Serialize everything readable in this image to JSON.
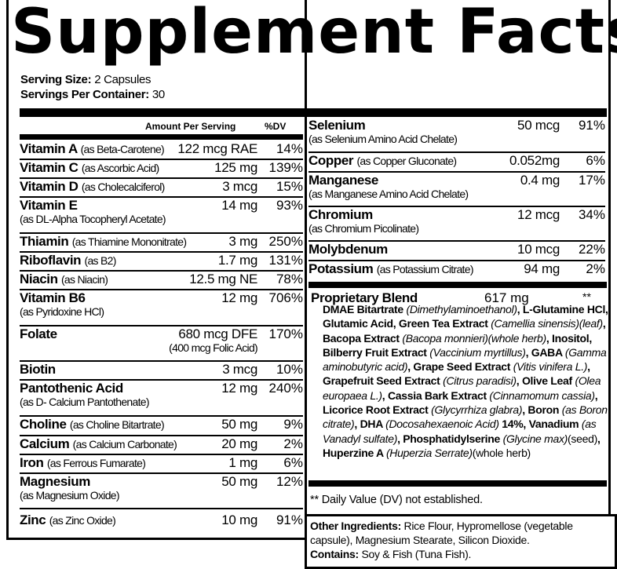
{
  "title": "Supplement Facts",
  "serving_size_label": "Serving Size:",
  "serving_size": "2 Capsules",
  "servings_label": "Servings Per Container:",
  "servings": "30",
  "headers": {
    "amount": "Amount Per Serving",
    "dv": "%DV"
  },
  "left_rows": [
    {
      "name": "Vitamin A",
      "source": "(as Beta-Carotene)",
      "amount": "122 mcg RAE",
      "dv": "14%"
    },
    {
      "name": "Vitamin C",
      "source": "(as Ascorbic Acid)",
      "amount": "125 mg",
      "dv": "139%"
    },
    {
      "name": "Vitamin D",
      "source": "(as Cholecalciferol)",
      "amount": "3 mcg",
      "dv": "15%"
    },
    {
      "name": "Vitamin E",
      "sub": "(as DL-Alpha Tocopheryl Acetate)",
      "amount": "14 mg",
      "dv": "93%"
    },
    {
      "name": "Thiamin",
      "source": "(as Thiamine Mononitrate)",
      "amount": "3 mg",
      "dv": "250%"
    },
    {
      "name": "Riboflavin",
      "source": "(as B2)",
      "amount": "1.7 mg",
      "dv": "131%"
    },
    {
      "name": "Niacin",
      "source": "(as Niacin)",
      "amount": "12.5 mg NE",
      "dv": "78%"
    },
    {
      "name": "Vitamin B6",
      "sub": "(as Pyridoxine HCl)",
      "amount": "12 mg",
      "dv": "706%"
    },
    {
      "name": "Folate",
      "amount": "680 mcg DFE",
      "amount_sub": "(400 mcg Folic Acid)",
      "dv": "170%"
    },
    {
      "name": "Biotin",
      "amount": "3 mcg",
      "dv": "10%"
    },
    {
      "name": "Pantothenic Acid",
      "sub": "(as D- Calcium Pantothenate)",
      "amount": "12 mg",
      "dv": "240%"
    },
    {
      "name": "Choline",
      "source": "(as Choline Bitartrate)",
      "amount": "50 mg",
      "dv": "9%"
    },
    {
      "name": "Calcium",
      "source": "(as Calcium Carbonate)",
      "amount": "20 mg",
      "dv": "2%"
    },
    {
      "name": "Iron",
      "source": "(as Ferrous Fumarate)",
      "amount": "1 mg",
      "dv": "6%"
    },
    {
      "name": "Magnesium",
      "sub": "(as Magnesium Oxide)",
      "amount": "50 mg",
      "dv": "12%"
    },
    {
      "name": "Zinc",
      "source": "(as Zinc Oxide)",
      "amount": "10 mg",
      "dv": "91%"
    }
  ],
  "right_rows": [
    {
      "name": "Selenium",
      "sub": "(as Selenium Amino Acid Chelate)",
      "amount": "50 mcg",
      "dv": "91%"
    },
    {
      "name": "Copper",
      "source": "(as Copper Gluconate)",
      "amount": "0.052mg",
      "dv": "6%"
    },
    {
      "name": "Manganese",
      "sub": "(as Manganese Amino Acid Chelate)",
      "amount": "0.4 mg",
      "dv": "17%"
    },
    {
      "name": "Chromium",
      "sub": "(as Chromium Picolinate)",
      "amount": "12 mcg",
      "dv": "34%"
    },
    {
      "name": "Molybdenum",
      "amount": "10 mcg",
      "dv": "22%"
    },
    {
      "name": "Potassium",
      "source": "(as Potassium Citrate)",
      "amount": "94 mg",
      "dv": "2%"
    }
  ],
  "blend": {
    "name": "Proprietary Blend",
    "amount": "617 mg",
    "dv": "**",
    "parts": [
      [
        "b",
        "DMAE Bitartrate "
      ],
      [
        "i",
        "(Dimethylaminoethanol)"
      ],
      [
        "b",
        ", L-Glutamine HCl, Glutamic Acid, Green Tea Extract "
      ],
      [
        "i",
        "(Camellia sinensis)(leaf)"
      ],
      [
        "b",
        ", Bacopa Extract "
      ],
      [
        "i",
        "(Bacopa monnieri)(whole herb)"
      ],
      [
        "b",
        ", Inositol, Bilberry Fruit Extract "
      ],
      [
        "i",
        "(Vaccinium myrtillus)"
      ],
      [
        "b",
        ", GABA "
      ],
      [
        "i",
        "(Gamma aminobutyric acid)"
      ],
      [
        "b",
        ", Grape Seed Extract "
      ],
      [
        "i",
        "(Vitis vinifera L.)"
      ],
      [
        "b",
        ", Grapefruit Seed Extract "
      ],
      [
        "i",
        "(Citrus paradisi)"
      ],
      [
        "b",
        ", Olive Leaf "
      ],
      [
        "i",
        "(Olea europaea L.)"
      ],
      [
        "b",
        ", Cassia Bark Extract "
      ],
      [
        "i",
        "(Cinnamomum cassia)"
      ],
      [
        "b",
        ", Licorice Root Extract "
      ],
      [
        "i",
        "(Glycyrrhiza glabra)"
      ],
      [
        "b",
        ", Boron "
      ],
      [
        "i",
        "(as Boron citrate)"
      ],
      [
        "b",
        ", DHA "
      ],
      [
        "i",
        "(Docosahexaenoic Acid) "
      ],
      [
        "b",
        "14%, Vanadium "
      ],
      [
        "i",
        "(as Vanadyl sulfate)"
      ],
      [
        "b",
        ", Phosphatidylserine "
      ],
      [
        "i",
        "(Glycine max)"
      ],
      [
        "n",
        "(seed)"
      ],
      [
        "b",
        ", Huperzine A "
      ],
      [
        "i",
        "(Huperzia Serrate)"
      ],
      [
        "n",
        "(whole herb)"
      ]
    ]
  },
  "dv_note": "** Daily Value (DV) not established.",
  "other": {
    "label": "Other Ingredients:",
    "text": " Rice Flour, Hypromellose (vegetable capsule), Magnesium Stearate, Silicon Dioxide.",
    "contains_label": "Contains:",
    "contains": " Soy & Fish (Tuna Fish)."
  }
}
